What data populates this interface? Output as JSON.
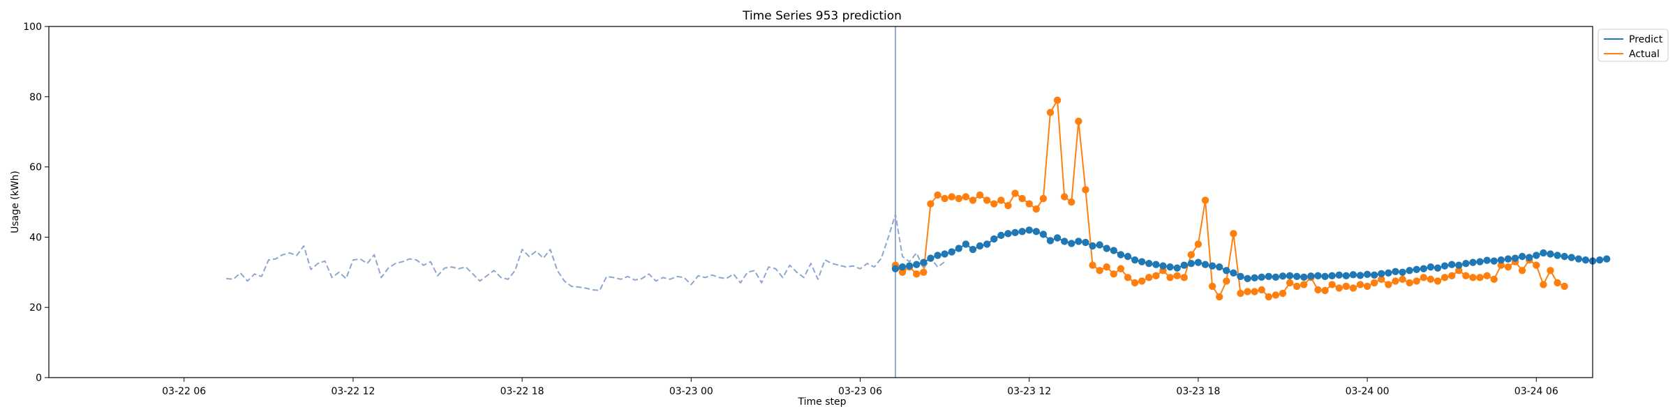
{
  "chart_data": {
    "type": "line",
    "title": "Time Series 953 prediction",
    "xlabel": "Time step",
    "ylabel": "Usage (kWh)",
    "ylim": [
      0,
      100
    ],
    "xlim_hours": [
      -4.8,
      50.0
    ],
    "x_origin": "03-22 06:00",
    "y_ticks": [
      "0",
      "20",
      "40",
      "60",
      "80",
      "100"
    ],
    "x_ticks": [
      {
        "label": "03-22 06",
        "hour": 0
      },
      {
        "label": "03-22 12",
        "hour": 6
      },
      {
        "label": "03-22 18",
        "hour": 12
      },
      {
        "label": "03-23 00",
        "hour": 18
      },
      {
        "label": "03-23 06",
        "hour": 24
      },
      {
        "label": "03-23 12",
        "hour": 30
      },
      {
        "label": "03-23 18",
        "hour": 36
      },
      {
        "label": "03-24 00",
        "hour": 42
      },
      {
        "label": "03-24 06",
        "hour": 48
      }
    ],
    "forecast_start_hour": 25.25,
    "legend": {
      "placement": "top-right-outside"
    },
    "series": [
      {
        "name": "Predict",
        "color": "#1f77b4",
        "start_hour": 25.25,
        "step_hours": 0.25,
        "values": [
          31.0,
          31.5,
          31.8,
          32.2,
          32.8,
          34.0,
          34.8,
          35.2,
          35.8,
          36.8,
          38.0,
          36.5,
          37.5,
          38.0,
          39.5,
          40.5,
          41.0,
          41.3,
          41.6,
          42.0,
          41.6,
          40.8,
          39.0,
          39.8,
          38.8,
          38.2,
          38.8,
          38.5,
          37.5,
          37.8,
          36.8,
          36.2,
          35.0,
          34.5,
          33.5,
          33.0,
          32.5,
          32.2,
          31.8,
          31.5,
          31.2,
          32.0,
          32.5,
          32.8,
          32.2,
          31.8,
          31.5,
          30.5,
          29.8,
          28.8,
          28.2,
          28.4,
          28.6,
          28.8,
          28.6,
          28.9,
          29.0,
          28.8,
          28.6,
          28.9,
          29.0,
          28.8,
          29.0,
          29.2,
          29.0,
          29.3,
          29.1,
          29.4,
          29.2,
          29.6,
          29.8,
          30.2,
          30.0,
          30.5,
          30.8,
          31.0,
          31.5,
          31.2,
          31.8,
          32.2,
          32.0,
          32.5,
          32.8,
          33.0,
          33.4,
          33.2,
          33.5,
          33.8,
          34.0,
          34.5,
          34.2,
          34.8,
          35.5,
          35.2,
          34.8,
          34.5,
          34.2,
          33.8,
          33.5,
          33.2,
          33.5,
          33.8
        ]
      },
      {
        "name": "Actual",
        "color": "#ff7f0e",
        "start_hour": 25.25,
        "step_hours": 0.25,
        "values": [
          32.0,
          30.0,
          31.5,
          29.5,
          30.0,
          49.5,
          52.0,
          51.0,
          51.5,
          51.0,
          51.5,
          50.5,
          52.0,
          50.5,
          49.5,
          50.5,
          49.0,
          52.5,
          51.0,
          49.5,
          48.0,
          51.0,
          75.5,
          79.0,
          51.5,
          50.0,
          73.0,
          53.5,
          32.0,
          30.5,
          31.5,
          29.5,
          31.0,
          28.5,
          27.0,
          27.5,
          28.5,
          29.0,
          30.5,
          28.5,
          29.0,
          28.5,
          35.0,
          38.0,
          50.5,
          26.0,
          23.0,
          27.5,
          41.0,
          24.0,
          24.5,
          24.5,
          25.0,
          23.0,
          23.5,
          24.0,
          27.0,
          26.0,
          26.5,
          28.5,
          25.0,
          24.8,
          26.5,
          25.5,
          26.0,
          25.5,
          26.5,
          26.0,
          27.0,
          28.0,
          26.5,
          27.5,
          28.0,
          27.0,
          27.5,
          28.5,
          28.0,
          27.5,
          28.5,
          29.0,
          30.5,
          29.0,
          28.5,
          28.5,
          29.0,
          28.0,
          32.0,
          31.5,
          33.0,
          30.5,
          33.5,
          32.0,
          26.5,
          30.5,
          27.0,
          26.0
        ]
      },
      {
        "name": "",
        "color": "#8ca6d0",
        "style": "dashed",
        "start_hour": 1.5,
        "step_hours": 0.25,
        "values": [
          28.2,
          28.0,
          29.8,
          27.5,
          29.5,
          28.8,
          33.5,
          33.8,
          35.0,
          35.5,
          34.8,
          37.5,
          30.8,
          32.5,
          33.2,
          28.5,
          30.0,
          28.2,
          33.5,
          33.8,
          32.5,
          35.0,
          28.5,
          31.2,
          32.5,
          33.0,
          33.8,
          33.5,
          32.0,
          33.0,
          29.0,
          31.2,
          31.5,
          31.0,
          31.5,
          29.5,
          27.5,
          29.0,
          30.5,
          28.5,
          28.0,
          30.5,
          36.5,
          34.5,
          36.0,
          34.0,
          36.5,
          30.5,
          27.5,
          26.0,
          25.8,
          25.5,
          25.0,
          24.8,
          28.8,
          28.5,
          28.0,
          28.8,
          27.8,
          28.2,
          29.5,
          27.5,
          28.5,
          28.0,
          28.8,
          28.5,
          26.5,
          29.0,
          28.5,
          29.2,
          28.5,
          28.2,
          29.5,
          27.0,
          30.0,
          30.5,
          27.0,
          31.5,
          31.0,
          28.5,
          32.0,
          30.0,
          28.5,
          32.5,
          28.0,
          33.5,
          32.5,
          32.0,
          31.5,
          31.8,
          31.0,
          32.5,
          31.5,
          34.0,
          40.0,
          46.5,
          34.5,
          33.0,
          35.5,
          31.0,
          34.0,
          31.5,
          33.0
        ]
      }
    ]
  }
}
